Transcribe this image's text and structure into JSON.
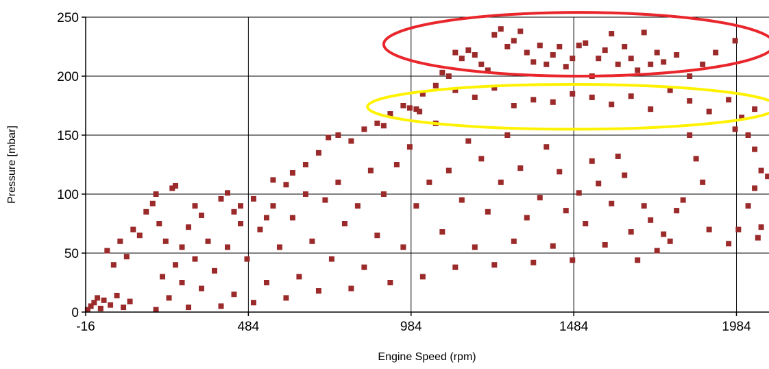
{
  "chart_data": {
    "type": "scatter",
    "title": "",
    "xlabel": "Engine Speed (rpm)",
    "ylabel": "Pressure [mbar]",
    "xlim": [
      -16,
      2084
    ],
    "ylim": [
      0,
      250
    ],
    "xticks": [
      -16,
      484,
      984,
      1484,
      1984
    ],
    "yticks": [
      0,
      50,
      100,
      150,
      200,
      250
    ],
    "xtick_labels": [
      "-16",
      "484",
      "984",
      "1484",
      "1984"
    ],
    "ytick_labels": [
      "0",
      "50",
      "100",
      "150",
      "200",
      "250"
    ],
    "grid": true,
    "legend": "none",
    "marker": "square",
    "series": [
      {
        "color": "#9B2A2A",
        "points": [
          [
            -10,
            2
          ],
          [
            0,
            5
          ],
          [
            10,
            8
          ],
          [
            20,
            12
          ],
          [
            30,
            3
          ],
          [
            40,
            10
          ],
          [
            60,
            6
          ],
          [
            80,
            14
          ],
          [
            100,
            4
          ],
          [
            120,
            9
          ],
          [
            50,
            52
          ],
          [
            70,
            40
          ],
          [
            90,
            60
          ],
          [
            110,
            47
          ],
          [
            130,
            70
          ],
          [
            150,
            65
          ],
          [
            170,
            85
          ],
          [
            190,
            92
          ],
          [
            200,
            100
          ],
          [
            210,
            75
          ],
          [
            230,
            60
          ],
          [
            250,
            105
          ],
          [
            260,
            107
          ],
          [
            280,
            55
          ],
          [
            300,
            72
          ],
          [
            320,
            90
          ],
          [
            340,
            82
          ],
          [
            400,
            96
          ],
          [
            420,
            101
          ],
          [
            440,
            85
          ],
          [
            460,
            90
          ],
          [
            500,
            96
          ],
          [
            540,
            80
          ],
          [
            560,
            112
          ],
          [
            600,
            108
          ],
          [
            620,
            118
          ],
          [
            660,
            125
          ],
          [
            700,
            135
          ],
          [
            730,
            148
          ],
          [
            760,
            150
          ],
          [
            800,
            145
          ],
          [
            840,
            155
          ],
          [
            880,
            160
          ],
          [
            900,
            158
          ],
          [
            920,
            168
          ],
          [
            960,
            175
          ],
          [
            980,
            173
          ],
          [
            1000,
            172
          ],
          [
            1010,
            170
          ],
          [
            1020,
            185
          ],
          [
            1060,
            192
          ],
          [
            1080,
            203
          ],
          [
            1100,
            200
          ],
          [
            1120,
            220
          ],
          [
            1140,
            215
          ],
          [
            1160,
            222
          ],
          [
            1180,
            218
          ],
          [
            1200,
            210
          ],
          [
            1220,
            205
          ],
          [
            1240,
            235
          ],
          [
            1260,
            240
          ],
          [
            1280,
            225
          ],
          [
            1300,
            230
          ],
          [
            1320,
            238
          ],
          [
            1340,
            220
          ],
          [
            1360,
            212
          ],
          [
            1380,
            226
          ],
          [
            1400,
            210
          ],
          [
            1420,
            218
          ],
          [
            1440,
            225
          ],
          [
            1460,
            208
          ],
          [
            1480,
            215
          ],
          [
            1500,
            226
          ],
          [
            1520,
            228
          ],
          [
            1540,
            200
          ],
          [
            1560,
            215
          ],
          [
            1580,
            222
          ],
          [
            1600,
            236
          ],
          [
            1620,
            210
          ],
          [
            1640,
            225
          ],
          [
            1660,
            215
          ],
          [
            1680,
            205
          ],
          [
            1700,
            237
          ],
          [
            1720,
            210
          ],
          [
            1740,
            220
          ],
          [
            1760,
            212
          ],
          [
            1800,
            218
          ],
          [
            1840,
            200
          ],
          [
            1880,
            210
          ],
          [
            1920,
            220
          ],
          [
            1980,
            230
          ],
          [
            1120,
            188
          ],
          [
            1180,
            182
          ],
          [
            1240,
            190
          ],
          [
            1300,
            175
          ],
          [
            1360,
            180
          ],
          [
            1420,
            178
          ],
          [
            1480,
            185
          ],
          [
            1540,
            182
          ],
          [
            1600,
            176
          ],
          [
            1660,
            183
          ],
          [
            1720,
            172
          ],
          [
            1780,
            188
          ],
          [
            1840,
            179
          ],
          [
            1900,
            170
          ],
          [
            1960,
            180
          ],
          [
            2000,
            165
          ],
          [
            2040,
            172
          ],
          [
            1980,
            155
          ],
          [
            2020,
            150
          ],
          [
            2040,
            138
          ],
          [
            2060,
            120
          ],
          [
            2080,
            115
          ],
          [
            2040,
            105
          ],
          [
            2020,
            90
          ],
          [
            1990,
            70
          ],
          [
            1960,
            58
          ],
          [
            2050,
            63
          ],
          [
            2060,
            72
          ],
          [
            1900,
            70
          ],
          [
            1880,
            110
          ],
          [
            1860,
            130
          ],
          [
            1840,
            150
          ],
          [
            1820,
            95
          ],
          [
            1800,
            86
          ],
          [
            1780,
            60
          ],
          [
            1760,
            66
          ],
          [
            1740,
            52
          ],
          [
            1720,
            78
          ],
          [
            1700,
            90
          ],
          [
            1680,
            44
          ],
          [
            1660,
            68
          ],
          [
            1640,
            116
          ],
          [
            1620,
            132
          ],
          [
            1600,
            92
          ],
          [
            1580,
            57
          ],
          [
            1560,
            109
          ],
          [
            1540,
            128
          ],
          [
            1520,
            75
          ],
          [
            1500,
            101
          ],
          [
            1480,
            44
          ],
          [
            1460,
            86
          ],
          [
            1440,
            119
          ],
          [
            1420,
            56
          ],
          [
            1400,
            140
          ],
          [
            1380,
            97
          ],
          [
            1360,
            42
          ],
          [
            1340,
            80
          ],
          [
            1320,
            122
          ],
          [
            1300,
            60
          ],
          [
            1280,
            150
          ],
          [
            1260,
            110
          ],
          [
            1240,
            40
          ],
          [
            1220,
            85
          ],
          [
            1200,
            130
          ],
          [
            1180,
            55
          ],
          [
            1160,
            145
          ],
          [
            1140,
            95
          ],
          [
            1120,
            38
          ],
          [
            1100,
            120
          ],
          [
            1080,
            68
          ],
          [
            1060,
            160
          ],
          [
            1040,
            110
          ],
          [
            1020,
            30
          ],
          [
            1000,
            90
          ],
          [
            980,
            140
          ],
          [
            960,
            55
          ],
          [
            940,
            125
          ],
          [
            920,
            25
          ],
          [
            900,
            100
          ],
          [
            880,
            65
          ],
          [
            860,
            120
          ],
          [
            840,
            38
          ],
          [
            820,
            90
          ],
          [
            800,
            20
          ],
          [
            780,
            75
          ],
          [
            760,
            110
          ],
          [
            740,
            45
          ],
          [
            720,
            95
          ],
          [
            700,
            18
          ],
          [
            680,
            60
          ],
          [
            660,
            100
          ],
          [
            640,
            30
          ],
          [
            620,
            80
          ],
          [
            600,
            12
          ],
          [
            580,
            55
          ],
          [
            560,
            90
          ],
          [
            540,
            25
          ],
          [
            520,
            70
          ],
          [
            500,
            8
          ],
          [
            480,
            45
          ],
          [
            460,
            75
          ],
          [
            440,
            15
          ],
          [
            420,
            55
          ],
          [
            400,
            5
          ],
          [
            380,
            35
          ],
          [
            360,
            60
          ],
          [
            340,
            20
          ],
          [
            320,
            45
          ],
          [
            300,
            4
          ],
          [
            280,
            25
          ],
          [
            260,
            40
          ],
          [
            240,
            12
          ],
          [
            220,
            30
          ],
          [
            200,
            2
          ]
        ]
      }
    ],
    "annotations": [
      {
        "shape": "ellipse",
        "color": "#E8262B",
        "cx": 1500,
        "cy": 227,
        "rx": 600,
        "ry": 27
      },
      {
        "shape": "ellipse",
        "color": "#FFF200",
        "cx": 1480,
        "cy": 174,
        "rx": 630,
        "ry": 19
      }
    ]
  }
}
